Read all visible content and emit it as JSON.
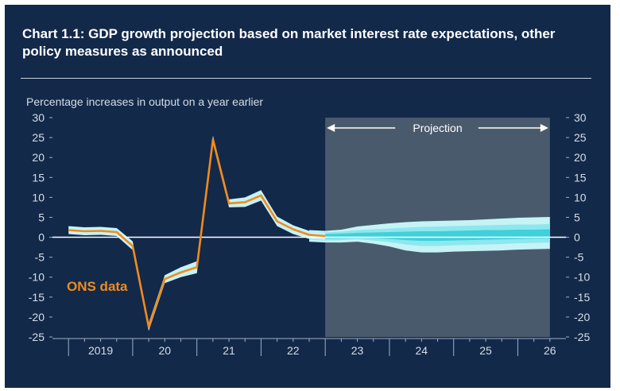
{
  "title": "Chart 1.1: GDP growth projection based on market interest rate expectations, other policy measures as announced",
  "subtitle": "Percentage increases in output on a year earlier",
  "colors": {
    "background": "#12294a",
    "ons_line": "#f28a1c",
    "projection_shade": "#4a5a6d",
    "fan_outer": "#c5f3f6",
    "fan_mid": "#8ee7ee",
    "fan_inner": "#3fd0da"
  },
  "chart_data": {
    "type": "line",
    "ylim": [
      -25,
      30
    ],
    "yticks": [
      "30",
      "25",
      "20",
      "15",
      "10",
      "5",
      "0",
      "-5",
      "-10",
      "-15",
      "-20",
      "-25"
    ],
    "x_labels": [
      "2019",
      "20",
      "21",
      "22",
      "23",
      "24",
      "25",
      "26"
    ],
    "projection_label": "Projection",
    "series": [
      {
        "name": "ONS data",
        "x": [
          2019.0,
          2019.25,
          2019.5,
          2019.75,
          2020.0,
          2020.25,
          2020.5,
          2020.75,
          2021.0,
          2021.25,
          2021.5,
          2021.75,
          2022.0,
          2022.25,
          2022.5,
          2022.75,
          2023.0
        ],
        "values": [
          1.8,
          1.5,
          1.6,
          1.3,
          -2.2,
          -22.5,
          -10.5,
          -8.8,
          -7.5,
          24.5,
          8.5,
          8.8,
          10.5,
          4.0,
          2.0,
          0.6,
          0.3
        ]
      }
    ],
    "fan": {
      "x": [
        2022.75,
        2023.0,
        2023.25,
        2023.5,
        2023.75,
        2024.0,
        2024.25,
        2024.5,
        2024.75,
        2025.0,
        2025.25,
        2025.5,
        2025.75,
        2026.0,
        2026.25,
        2026.5
      ],
      "outer_upper": [
        1.8,
        1.6,
        1.9,
        2.7,
        3.1,
        3.5,
        3.8,
        4.0,
        4.1,
        4.2,
        4.3,
        4.5,
        4.7,
        4.9,
        5.0,
        5.1
      ],
      "outer_lower": [
        -1.1,
        -1.3,
        -1.3,
        -1.1,
        -1.6,
        -2.3,
        -3.3,
        -3.8,
        -3.8,
        -3.6,
        -3.5,
        -3.4,
        -3.3,
        -3.1,
        -3.0,
        -2.9
      ],
      "mid_upper": [
        1.3,
        1.2,
        1.4,
        1.8,
        2.0,
        2.2,
        2.4,
        2.6,
        2.7,
        2.8,
        2.9,
        3.0,
        3.1,
        3.2,
        3.2,
        3.3
      ],
      "mid_lower": [
        -0.6,
        -0.8,
        -0.7,
        -0.5,
        -0.8,
        -1.2,
        -1.8,
        -2.2,
        -2.2,
        -2.0,
        -1.9,
        -1.8,
        -1.7,
        -1.5,
        -1.4,
        -1.3
      ],
      "inner_upper": [
        0.9,
        0.8,
        0.9,
        1.1,
        1.2,
        1.3,
        1.4,
        1.5,
        1.5,
        1.6,
        1.7,
        1.8,
        1.8,
        1.9,
        1.9,
        2.0
      ],
      "inner_lower": [
        -0.1,
        -0.3,
        -0.2,
        0.0,
        -0.2,
        -0.4,
        -0.7,
        -0.9,
        -0.9,
        -0.8,
        -0.7,
        -0.6,
        -0.5,
        -0.4,
        -0.3,
        -0.3
      ]
    },
    "ons_band_upper": [
      2.8,
      2.5,
      2.6,
      2.3,
      -1.0,
      -21.5,
      -9.5,
      -7.5,
      -6.0,
      25.5,
      9.5,
      10.0,
      11.8,
      5.2,
      3.0,
      1.6,
      1.0
    ],
    "ons_band_lower": [
      0.8,
      0.5,
      0.6,
      0.3,
      -3.2,
      -23.5,
      -11.5,
      -10.0,
      -9.0,
      23.5,
      7.5,
      7.6,
      9.2,
      2.8,
      0.8,
      -0.4,
      -0.6
    ],
    "projection_start": 2023.0,
    "projection_end": 2026.5,
    "x_range": [
      2018.75,
      2026.75
    ],
    "grid": false
  }
}
